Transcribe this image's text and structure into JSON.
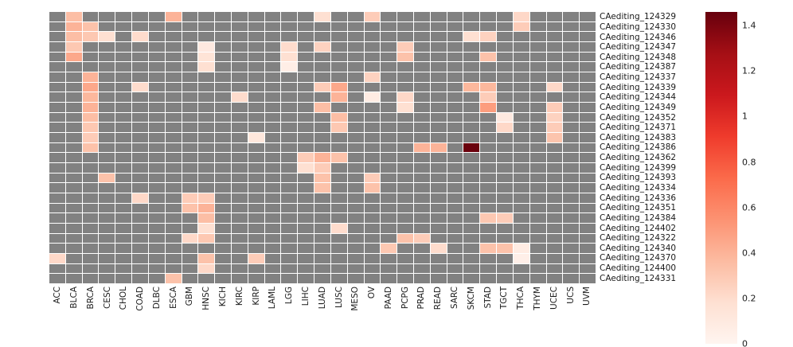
{
  "chart_data": {
    "type": "heatmap",
    "title": "",
    "xlabel": "",
    "ylabel": "",
    "colormap": "Reds",
    "missing_color": "#818181",
    "vmin": 0,
    "vmax": 1.46,
    "legend_position": "right-colorbar",
    "colorbar_ticks": [
      0,
      0.2,
      0.4,
      0.6,
      0.8,
      1,
      1.2,
      1.4
    ],
    "columns": [
      "ACC",
      "BLCA",
      "BRCA",
      "CESC",
      "CHOL",
      "COAD",
      "DLBC",
      "ESCA",
      "GBM",
      "HNSC",
      "KICH",
      "KIRC",
      "KIRP",
      "LAML",
      "LGG",
      "LIHC",
      "LUAD",
      "LUSC",
      "MESO",
      "OV",
      "PAAD",
      "PCPG",
      "PRAD",
      "READ",
      "SARC",
      "SKCM",
      "STAD",
      "TGCT",
      "THCA",
      "THYM",
      "UCEC",
      "UCS",
      "UVM"
    ],
    "rows": [
      "CAediting_124329",
      "CAediting_124330",
      "CAediting_124346",
      "CAediting_124347",
      "CAediting_124348",
      "CAediting_124387",
      "CAediting_124337",
      "CAediting_124339",
      "CAediting_124344",
      "CAediting_124349",
      "CAediting_124352",
      "CAediting_124371",
      "CAediting_124383",
      "CAediting_124386",
      "CAediting_124362",
      "CAediting_124399",
      "CAediting_124393",
      "CAediting_124334",
      "CAediting_124336",
      "CAediting_124351",
      "CAediting_124384",
      "CAediting_124402",
      "CAediting_124322",
      "CAediting_124340",
      "CAediting_124370",
      "CAediting_124400",
      "CAediting_124331"
    ],
    "cells": [
      {
        "row": "CAediting_124329",
        "col": "BLCA",
        "value": 0.35
      },
      {
        "row": "CAediting_124329",
        "col": "ESCA",
        "value": 0.4
      },
      {
        "row": "CAediting_124329",
        "col": "LUAD",
        "value": 0.18
      },
      {
        "row": "CAediting_124329",
        "col": "OV",
        "value": 0.28
      },
      {
        "row": "CAediting_124329",
        "col": "THCA",
        "value": 0.22
      },
      {
        "row": "CAediting_124330",
        "col": "BLCA",
        "value": 0.4
      },
      {
        "row": "CAediting_124330",
        "col": "BRCA",
        "value": 0.33
      },
      {
        "row": "CAediting_124330",
        "col": "THCA",
        "value": 0.28
      },
      {
        "row": "CAediting_124346",
        "col": "BLCA",
        "value": 0.35
      },
      {
        "row": "CAediting_124346",
        "col": "BRCA",
        "value": 0.3
      },
      {
        "row": "CAediting_124346",
        "col": "CESC",
        "value": 0.18
      },
      {
        "row": "CAediting_124346",
        "col": "COAD",
        "value": 0.2
      },
      {
        "row": "CAediting_124346",
        "col": "SKCM",
        "value": 0.18
      },
      {
        "row": "CAediting_124346",
        "col": "STAD",
        "value": 0.25
      },
      {
        "row": "CAediting_124347",
        "col": "BLCA",
        "value": 0.3
      },
      {
        "row": "CAediting_124347",
        "col": "HNSC",
        "value": 0.1
      },
      {
        "row": "CAediting_124347",
        "col": "LGG",
        "value": 0.2
      },
      {
        "row": "CAediting_124347",
        "col": "LUAD",
        "value": 0.25
      },
      {
        "row": "CAediting_124347",
        "col": "PCPG",
        "value": 0.28
      },
      {
        "row": "CAediting_124348",
        "col": "BLCA",
        "value": 0.45
      },
      {
        "row": "CAediting_124348",
        "col": "HNSC",
        "value": 0.15
      },
      {
        "row": "CAediting_124348",
        "col": "LGG",
        "value": 0.18
      },
      {
        "row": "CAediting_124348",
        "col": "PCPG",
        "value": 0.33
      },
      {
        "row": "CAediting_124348",
        "col": "STAD",
        "value": 0.33
      },
      {
        "row": "CAediting_124387",
        "col": "HNSC",
        "value": 0.18
      },
      {
        "row": "CAediting_124387",
        "col": "LGG",
        "value": 0.06
      },
      {
        "row": "CAediting_124337",
        "col": "BRCA",
        "value": 0.4
      },
      {
        "row": "CAediting_124337",
        "col": "OV",
        "value": 0.25
      },
      {
        "row": "CAediting_124339",
        "col": "BRCA",
        "value": 0.45
      },
      {
        "row": "CAediting_124339",
        "col": "COAD",
        "value": 0.2
      },
      {
        "row": "CAediting_124339",
        "col": "LUAD",
        "value": 0.28
      },
      {
        "row": "CAediting_124339",
        "col": "LUSC",
        "value": 0.45
      },
      {
        "row": "CAediting_124339",
        "col": "SKCM",
        "value": 0.38
      },
      {
        "row": "CAediting_124339",
        "col": "STAD",
        "value": 0.38
      },
      {
        "row": "CAediting_124339",
        "col": "UCEC",
        "value": 0.22
      },
      {
        "row": "CAediting_124344",
        "col": "BRCA",
        "value": 0.38
      },
      {
        "row": "CAediting_124344",
        "col": "KIRC",
        "value": 0.2
      },
      {
        "row": "CAediting_124344",
        "col": "LUSC",
        "value": 0.4
      },
      {
        "row": "CAediting_124344",
        "col": "OV",
        "value": 0.08
      },
      {
        "row": "CAediting_124344",
        "col": "PCPG",
        "value": 0.22
      },
      {
        "row": "CAediting_124344",
        "col": "STAD",
        "value": 0.28
      },
      {
        "row": "CAediting_124349",
        "col": "BRCA",
        "value": 0.4
      },
      {
        "row": "CAediting_124349",
        "col": "LUAD",
        "value": 0.35
      },
      {
        "row": "CAediting_124349",
        "col": "PCPG",
        "value": 0.18
      },
      {
        "row": "CAediting_124349",
        "col": "STAD",
        "value": 0.5
      },
      {
        "row": "CAediting_124349",
        "col": "UCEC",
        "value": 0.28
      },
      {
        "row": "CAediting_124352",
        "col": "BRCA",
        "value": 0.35
      },
      {
        "row": "CAediting_124352",
        "col": "LUSC",
        "value": 0.35
      },
      {
        "row": "CAediting_124352",
        "col": "TGCT",
        "value": 0.1
      },
      {
        "row": "CAediting_124352",
        "col": "UCEC",
        "value": 0.25
      },
      {
        "row": "CAediting_124371",
        "col": "BRCA",
        "value": 0.3
      },
      {
        "row": "CAediting_124371",
        "col": "LUSC",
        "value": 0.3
      },
      {
        "row": "CAediting_124371",
        "col": "TGCT",
        "value": 0.22
      },
      {
        "row": "CAediting_124371",
        "col": "UCEC",
        "value": 0.28
      },
      {
        "row": "CAediting_124383",
        "col": "BRCA",
        "value": 0.28
      },
      {
        "row": "CAediting_124383",
        "col": "KIRP",
        "value": 0.12
      },
      {
        "row": "CAediting_124383",
        "col": "UCEC",
        "value": 0.32
      },
      {
        "row": "CAediting_124386",
        "col": "BRCA",
        "value": 0.33
      },
      {
        "row": "CAediting_124386",
        "col": "PRAD",
        "value": 0.4
      },
      {
        "row": "CAediting_124386",
        "col": "READ",
        "value": 0.4
      },
      {
        "row": "CAediting_124386",
        "col": "SKCM",
        "value": 1.45
      },
      {
        "row": "CAediting_124362",
        "col": "LIHC",
        "value": 0.28
      },
      {
        "row": "CAediting_124362",
        "col": "LUAD",
        "value": 0.4
      },
      {
        "row": "CAediting_124362",
        "col": "LUSC",
        "value": 0.33
      },
      {
        "row": "CAediting_124399",
        "col": "LIHC",
        "value": 0.18
      },
      {
        "row": "CAediting_124399",
        "col": "LUAD",
        "value": 0.28
      },
      {
        "row": "CAediting_124393",
        "col": "CESC",
        "value": 0.33
      },
      {
        "row": "CAediting_124393",
        "col": "LUAD",
        "value": 0.33
      },
      {
        "row": "CAediting_124393",
        "col": "OV",
        "value": 0.28
      },
      {
        "row": "CAediting_124334",
        "col": "LUAD",
        "value": 0.33
      },
      {
        "row": "CAediting_124334",
        "col": "OV",
        "value": 0.33
      },
      {
        "row": "CAediting_124336",
        "col": "COAD",
        "value": 0.22
      },
      {
        "row": "CAediting_124336",
        "col": "GBM",
        "value": 0.28
      },
      {
        "row": "CAediting_124336",
        "col": "HNSC",
        "value": 0.28
      },
      {
        "row": "CAediting_124351",
        "col": "GBM",
        "value": 0.33
      },
      {
        "row": "CAediting_124351",
        "col": "HNSC",
        "value": 0.4
      },
      {
        "row": "CAediting_124384",
        "col": "HNSC",
        "value": 0.35
      },
      {
        "row": "CAediting_124384",
        "col": "STAD",
        "value": 0.3
      },
      {
        "row": "CAediting_124384",
        "col": "TGCT",
        "value": 0.28
      },
      {
        "row": "CAediting_124402",
        "col": "HNSC",
        "value": 0.18
      },
      {
        "row": "CAediting_124402",
        "col": "LUSC",
        "value": 0.2
      },
      {
        "row": "CAediting_124322",
        "col": "GBM",
        "value": 0.22
      },
      {
        "row": "CAediting_124322",
        "col": "HNSC",
        "value": 0.3
      },
      {
        "row": "CAediting_124322",
        "col": "PCPG",
        "value": 0.33
      },
      {
        "row": "CAediting_124322",
        "col": "PRAD",
        "value": 0.28
      },
      {
        "row": "CAediting_124340",
        "col": "PAAD",
        "value": 0.3
      },
      {
        "row": "CAediting_124340",
        "col": "READ",
        "value": 0.2
      },
      {
        "row": "CAediting_124340",
        "col": "STAD",
        "value": 0.33
      },
      {
        "row": "CAediting_124340",
        "col": "TGCT",
        "value": 0.33
      },
      {
        "row": "CAediting_124340",
        "col": "THCA",
        "value": 0.08
      },
      {
        "row": "CAediting_124370",
        "col": "ACC",
        "value": 0.22
      },
      {
        "row": "CAediting_124370",
        "col": "HNSC",
        "value": 0.33
      },
      {
        "row": "CAediting_124370",
        "col": "KIRP",
        "value": 0.28
      },
      {
        "row": "CAediting_124370",
        "col": "THCA",
        "value": 0.05
      },
      {
        "row": "CAediting_124400",
        "col": "HNSC",
        "value": 0.22
      },
      {
        "row": "CAediting_124331",
        "col": "ESCA",
        "value": 0.33
      }
    ],
    "colormap_anchors": [
      [
        255,
        245,
        240
      ],
      [
        254,
        224,
        210
      ],
      [
        252,
        187,
        161
      ],
      [
        252,
        146,
        114
      ],
      [
        251,
        106,
        74
      ],
      [
        239,
        59,
        44
      ],
      [
        203,
        24,
        29
      ],
      [
        165,
        15,
        21
      ],
      [
        103,
        0,
        13
      ]
    ]
  }
}
